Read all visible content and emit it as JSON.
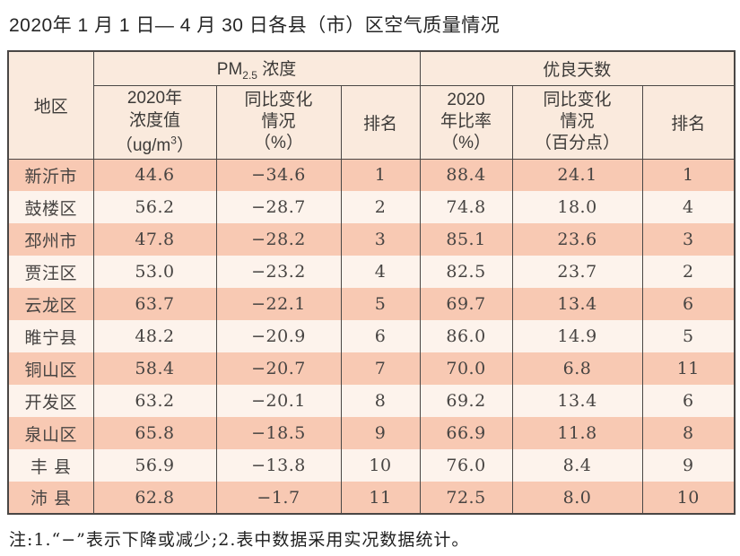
{
  "page_title": "2020年 1 月 1 日— 4 月 30 日各县（市）区空气质量情况",
  "colors": {
    "row_odd_bg": "#f8c9b3",
    "row_even_bg": "#fdf3ec",
    "header_bg": "#faeadd",
    "border_color": "#4a4745",
    "text_color": "#3c3a38",
    "title_color": "#262626"
  },
  "table": {
    "region_header": "地区",
    "pm_group": {
      "pm": "PM",
      "sub": "2.5",
      "rest": " 浓度"
    },
    "days_group": "优良天数",
    "pm_value_header": {
      "lines": "2020年\n浓度值",
      "unit_pre": "（ug/m",
      "unit_sup": "3",
      "unit_post": "）"
    },
    "pm_change_header": "同比变化\n情况\n（%）",
    "pm_rank_header": "排名",
    "days_ratio_header": "2020\n年比率\n（%）",
    "days_change_header": "同比变化\n情况\n（百分点）",
    "days_rank_header": "排名",
    "row_keys": [
      "region",
      "pm_value",
      "pm_change",
      "pm_rank",
      "days_ratio",
      "days_change",
      "days_rank"
    ],
    "rows": [
      {
        "region": "新沂市",
        "pm_value": "44.6",
        "pm_change": "−34.6",
        "pm_rank": "1",
        "days_ratio": "88.4",
        "days_change": "24.1",
        "days_rank": "1"
      },
      {
        "region": "鼓楼区",
        "pm_value": "56.2",
        "pm_change": "−28.7",
        "pm_rank": "2",
        "days_ratio": "74.8",
        "days_change": "18.0",
        "days_rank": "4"
      },
      {
        "region": "邳州市",
        "pm_value": "47.8",
        "pm_change": "−28.2",
        "pm_rank": "3",
        "days_ratio": "85.1",
        "days_change": "23.6",
        "days_rank": "3"
      },
      {
        "region": "贾汪区",
        "pm_value": "53.0",
        "pm_change": "−23.2",
        "pm_rank": "4",
        "days_ratio": "82.5",
        "days_change": "23.7",
        "days_rank": "2"
      },
      {
        "region": "云龙区",
        "pm_value": "63.7",
        "pm_change": "−22.1",
        "pm_rank": "5",
        "days_ratio": "69.7",
        "days_change": "13.4",
        "days_rank": "6"
      },
      {
        "region": "睢宁县",
        "pm_value": "48.2",
        "pm_change": "−20.9",
        "pm_rank": "6",
        "days_ratio": "86.0",
        "days_change": "14.9",
        "days_rank": "5"
      },
      {
        "region": "铜山区",
        "pm_value": "58.4",
        "pm_change": "−20.7",
        "pm_rank": "7",
        "days_ratio": "70.0",
        "days_change": "6.8",
        "days_rank": "11"
      },
      {
        "region": "开发区",
        "pm_value": "63.2",
        "pm_change": "−20.1",
        "pm_rank": "8",
        "days_ratio": "69.2",
        "days_change": "13.4",
        "days_rank": "6"
      },
      {
        "region": "泉山区",
        "pm_value": "65.8",
        "pm_change": "−18.5",
        "pm_rank": "9",
        "days_ratio": "66.9",
        "days_change": "11.8",
        "days_rank": "8"
      },
      {
        "region": "丰 县",
        "pm_value": "56.9",
        "pm_change": "−13.8",
        "pm_rank": "10",
        "days_ratio": "76.0",
        "days_change": "8.4",
        "days_rank": "9"
      },
      {
        "region": "沛 县",
        "pm_value": "62.8",
        "pm_change": "−1.7",
        "pm_rank": "11",
        "days_ratio": "72.5",
        "days_change": "8.0",
        "days_rank": "10"
      }
    ]
  },
  "footnote": "注:1.“−”表示下降或减少;2.表中数据采用实况数据统计。"
}
